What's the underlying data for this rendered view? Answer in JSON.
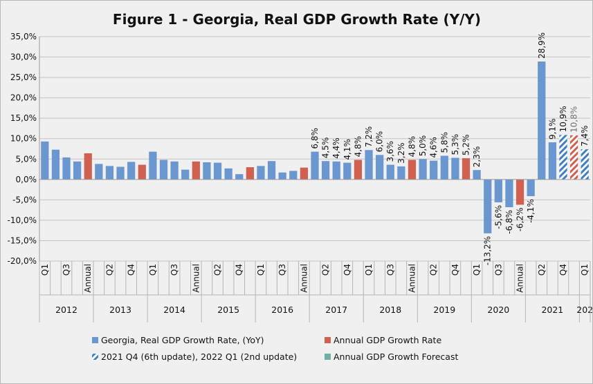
{
  "chart_data": {
    "type": "bar",
    "title": "Figure 1 - Georgia, Real GDP Growth Rate (Y/Y)",
    "ylim": [
      -20,
      35
    ],
    "yticks": [
      "-20,0%",
      "-15,0%",
      "-10,0%",
      "-5,0%",
      "0,0%",
      "5,0%",
      "10,0%",
      "15,0%",
      "20,0%",
      "25,0%",
      "30,0%",
      "35,0%"
    ],
    "grid": true,
    "legend_position": "bottom",
    "years": [
      {
        "label": "2012",
        "start": 0,
        "end": 5
      },
      {
        "label": "2013",
        "start": 5,
        "end": 10
      },
      {
        "label": "2014",
        "start": 10,
        "end": 15
      },
      {
        "label": "2015",
        "start": 15,
        "end": 20
      },
      {
        "label": "2016",
        "start": 20,
        "end": 25
      },
      {
        "label": "2017",
        "start": 25,
        "end": 30
      },
      {
        "label": "2018",
        "start": 30,
        "end": 35
      },
      {
        "label": "2019",
        "start": 35,
        "end": 40
      },
      {
        "label": "2020",
        "start": 40,
        "end": 45
      },
      {
        "label": "2021",
        "start": 45,
        "end": 50
      },
      {
        "label": "202",
        "start": 50,
        "end": 51
      }
    ],
    "bars": [
      {
        "cat": "Q1",
        "value": 9.3,
        "kind": "quarterly"
      },
      {
        "cat": "",
        "value": 7.3,
        "kind": "quarterly"
      },
      {
        "cat": "Q3",
        "value": 5.4,
        "kind": "quarterly"
      },
      {
        "cat": "",
        "value": 4.4,
        "kind": "quarterly"
      },
      {
        "cat": "Annual",
        "value": 6.4,
        "kind": "annual"
      },
      {
        "cat": "",
        "value": 3.8,
        "kind": "quarterly"
      },
      {
        "cat": "Q2",
        "value": 3.3,
        "kind": "quarterly"
      },
      {
        "cat": "",
        "value": 3.1,
        "kind": "quarterly"
      },
      {
        "cat": "Q4",
        "value": 4.3,
        "kind": "quarterly"
      },
      {
        "cat": "",
        "value": 3.6,
        "kind": "annual"
      },
      {
        "cat": "Q1",
        "value": 6.8,
        "kind": "quarterly"
      },
      {
        "cat": "",
        "value": 4.8,
        "kind": "quarterly"
      },
      {
        "cat": "Q3",
        "value": 4.4,
        "kind": "quarterly"
      },
      {
        "cat": "",
        "value": 2.4,
        "kind": "quarterly"
      },
      {
        "cat": "Annual",
        "value": 4.4,
        "kind": "annual"
      },
      {
        "cat": "",
        "value": 4.2,
        "kind": "quarterly"
      },
      {
        "cat": "Q2",
        "value": 4.1,
        "kind": "quarterly"
      },
      {
        "cat": "",
        "value": 2.7,
        "kind": "quarterly"
      },
      {
        "cat": "Q4",
        "value": 1.3,
        "kind": "quarterly"
      },
      {
        "cat": "",
        "value": 3.0,
        "kind": "annual"
      },
      {
        "cat": "Q1",
        "value": 3.3,
        "kind": "quarterly"
      },
      {
        "cat": "",
        "value": 4.5,
        "kind": "quarterly"
      },
      {
        "cat": "Q3",
        "value": 1.7,
        "kind": "quarterly"
      },
      {
        "cat": "",
        "value": 2.1,
        "kind": "quarterly"
      },
      {
        "cat": "Annual",
        "value": 2.9,
        "kind": "annual"
      },
      {
        "cat": "",
        "value": 6.8,
        "kind": "quarterly",
        "label": "6,8%"
      },
      {
        "cat": "Q2",
        "value": 4.5,
        "kind": "quarterly",
        "label": "4,5%"
      },
      {
        "cat": "",
        "value": 4.4,
        "kind": "quarterly",
        "label": "4,4%"
      },
      {
        "cat": "Q4",
        "value": 4.1,
        "kind": "quarterly",
        "label": "4,1%"
      },
      {
        "cat": "",
        "value": 4.8,
        "kind": "annual",
        "label": "4,8%"
      },
      {
        "cat": "Q1",
        "value": 7.2,
        "kind": "quarterly",
        "label": "7,2%"
      },
      {
        "cat": "",
        "value": 6.0,
        "kind": "quarterly",
        "label": "6,0%"
      },
      {
        "cat": "Q3",
        "value": 3.6,
        "kind": "quarterly",
        "label": "3,6%"
      },
      {
        "cat": "",
        "value": 3.2,
        "kind": "quarterly",
        "label": "3,2%"
      },
      {
        "cat": "Annual",
        "value": 4.8,
        "kind": "annual",
        "label": "4,8%"
      },
      {
        "cat": "",
        "value": 5.0,
        "kind": "quarterly",
        "label": "5,0%"
      },
      {
        "cat": "Q2",
        "value": 4.6,
        "kind": "quarterly",
        "label": "4,6%"
      },
      {
        "cat": "",
        "value": 5.8,
        "kind": "quarterly",
        "label": "5,8%"
      },
      {
        "cat": "Q4",
        "value": 5.3,
        "kind": "quarterly",
        "label": "5,3%"
      },
      {
        "cat": "",
        "value": 5.2,
        "kind": "annual",
        "label": "5,2%"
      },
      {
        "cat": "Q1",
        "value": 2.3,
        "kind": "quarterly",
        "label": "2,3%"
      },
      {
        "cat": "",
        "value": -13.2,
        "kind": "quarterly",
        "label": "-13,2%"
      },
      {
        "cat": "Q3",
        "value": -5.6,
        "kind": "quarterly",
        "label": "-5,6%"
      },
      {
        "cat": "",
        "value": -6.8,
        "kind": "quarterly",
        "label": "-6,8%"
      },
      {
        "cat": "Annual",
        "value": -6.2,
        "kind": "annual",
        "label": "-6,2%"
      },
      {
        "cat": "",
        "value": -4.1,
        "kind": "quarterly",
        "label": "-4,1%"
      },
      {
        "cat": "Q2",
        "value": 28.9,
        "kind": "quarterly",
        "label": "28,9%"
      },
      {
        "cat": "",
        "value": 9.1,
        "kind": "quarterly",
        "label": "9,1%"
      },
      {
        "cat": "Q4",
        "value": 10.9,
        "kind": "update",
        "label": "10,9%"
      },
      {
        "cat": "",
        "value": 10.8,
        "kind": "forecast_annual",
        "label": "10,8%",
        "label_muted": true
      },
      {
        "cat": "Q1",
        "value": 7.4,
        "kind": "update",
        "label": "7,4%"
      }
    ],
    "legend": [
      {
        "key": "quarterly",
        "label": "Georgia, Real GDP Growth Rate, (YoY)"
      },
      {
        "key": "annual",
        "label": "Annual GDP Growth Rate"
      },
      {
        "key": "update",
        "label": "2021 Q4 (6th update), 2022 Q1 (2nd update)"
      },
      {
        "key": "forecast",
        "label": "Annual GDP Growth Forecast"
      }
    ],
    "colors": {
      "quarterly": "#6a97cf",
      "annual": "#d06150",
      "update": "#3f7fc2",
      "forecast": "#74aca7",
      "grid": "#c4c4c4",
      "label_muted": "#6e6e6e"
    }
  }
}
